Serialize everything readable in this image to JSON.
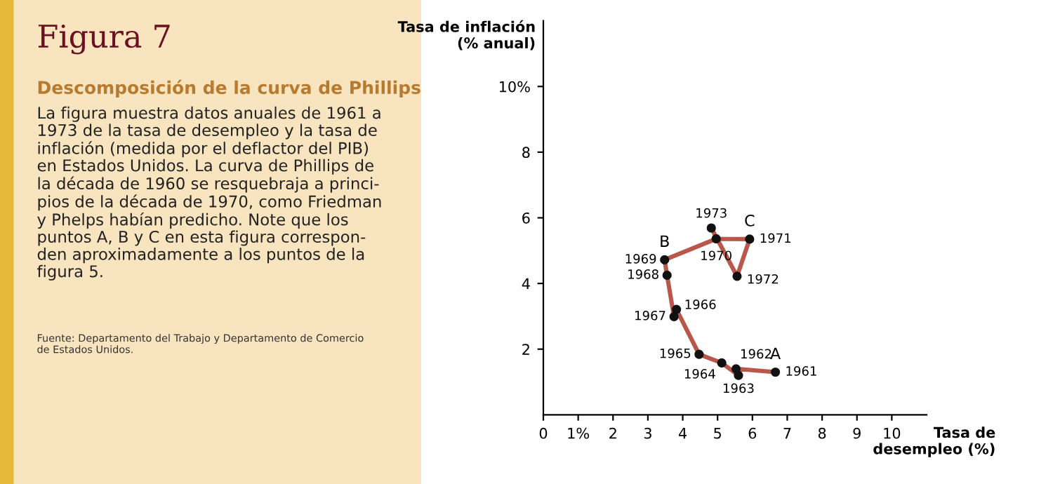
{
  "chart_data": {
    "type": "line",
    "title": "Figura 7",
    "subtitle": "Descomposición de la curva de Phillips",
    "xlabel": "Tasa de\ndesempleo (%)",
    "ylabel": "Tasa de inflación\n(% anual)",
    "annotations": [
      "La figura muestra datos anuales de 1961 a\n1973 de la tasa de desempleo y la tasa de\ninflación (medida por el deflactor del PIB)\nen Estados Unidos. La curva de Phillips de\nla década de 1960 se resquebraja a princi-\npios de la década de 1970, como Friedman\ny Phelps habían predicho. Note que los\npuntos A, B y C en esta figura correspon-\nden aproximadamente a los puntos de la\nfigura 5.",
      "Fuente: Departamento del Trabajo y Departamento de Comercio\nde Estados Unidos.",
      {
        "text": "1961",
        "x": 6.66,
        "y": 1.3
      },
      {
        "text": "1962",
        "x": 5.53,
        "y": 1.4
      },
      {
        "text": "1963",
        "x": 5.6,
        "y": 1.2
      },
      {
        "text": "1964",
        "x": 5.12,
        "y": 1.58
      },
      {
        "text": "1965",
        "x": 4.47,
        "y": 1.84
      },
      {
        "text": "1966",
        "x": 3.82,
        "y": 3.21
      },
      {
        "text": "1967",
        "x": 3.75,
        "y": 2.99
      },
      {
        "text": "1968",
        "x": 3.55,
        "y": 4.25
      },
      {
        "text": "1969",
        "x": 3.48,
        "y": 4.72
      },
      {
        "text": "1970",
        "x": 4.96,
        "y": 5.36
      },
      {
        "text": "1971",
        "x": 5.92,
        "y": 5.35
      },
      {
        "text": "1972",
        "x": 5.56,
        "y": 4.22
      },
      {
        "text": "1973",
        "x": 4.82,
        "y": 5.69
      },
      {
        "text": "A",
        "x": 6.66,
        "y": 1.3
      },
      {
        "text": "B",
        "x": 3.48,
        "y": 4.72
      },
      {
        "text": "C",
        "x": 5.92,
        "y": 5.35
      }
    ],
    "series": [
      {
        "color": "#b8574a",
        "x": [
          6.66,
          5.53,
          5.6,
          5.12,
          4.47,
          3.82,
          3.75,
          3.55,
          3.48,
          4.96,
          5.92,
          5.56,
          4.82
        ],
        "values": [
          1.3,
          1.4,
          1.2,
          1.58,
          1.84,
          3.21,
          2.99,
          4.25,
          4.72,
          5.36,
          5.35,
          4.22,
          5.69
        ]
      }
    ],
    "xlim": [
      0,
      11
    ],
    "ylim": [
      0,
      12
    ],
    "xticks": [
      0,
      {
        "value": 1,
        "label": "1%"
      },
      2,
      3,
      4,
      5,
      6,
      7,
      8,
      9,
      10
    ],
    "yticks": [
      2,
      4,
      6,
      8,
      {
        "value": 10,
        "label": "10%"
      }
    ],
    "marker": "circle",
    "line_style": "solid",
    "grid": false,
    "legend": false
  }
}
